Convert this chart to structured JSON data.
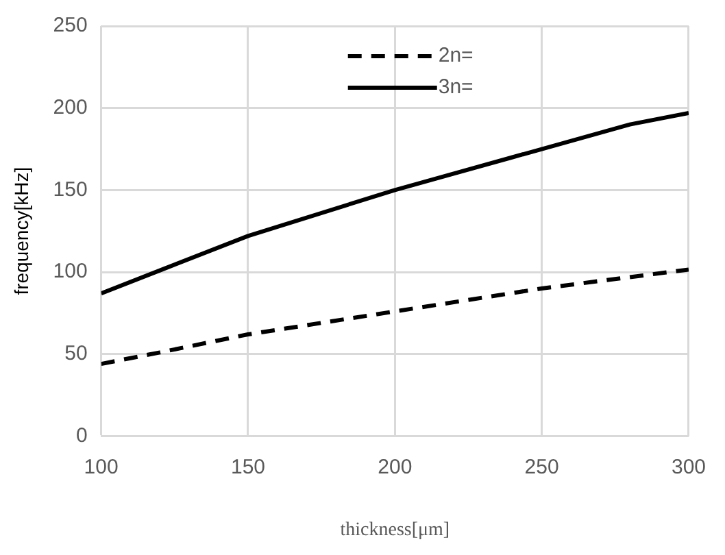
{
  "chart_data": {
    "type": "line",
    "xlabel": "thickness[μm]",
    "ylabel": "frequency[kHz]",
    "xlim": [
      100,
      300
    ],
    "xticks": [
      100,
      150,
      200,
      250,
      300
    ],
    "ylim": [
      0,
      250
    ],
    "yticks": [
      0,
      50,
      100,
      150,
      200,
      250
    ],
    "grid": true,
    "legend": "top",
    "marker": "none",
    "series": [
      {
        "name": "2n=",
        "color": "#000000",
        "line_style": "dashed",
        "x": [
          100,
          120,
          150,
          200,
          250,
          300
        ],
        "values": [
          44,
          51,
          62,
          76,
          90,
          101.5
        ]
      },
      {
        "name": "3n=",
        "color": "#000000",
        "line_style": "solid",
        "x": [
          100,
          120,
          150,
          200,
          240,
          250,
          280,
          300
        ],
        "values": [
          87,
          101,
          122,
          150,
          170,
          175,
          190,
          197
        ]
      }
    ]
  }
}
